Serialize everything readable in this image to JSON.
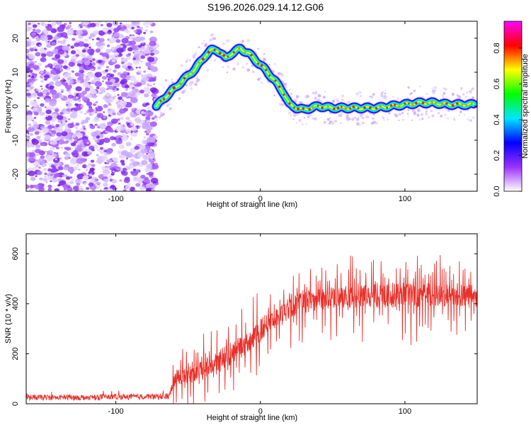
{
  "title": "S196.2026.029.14.12.G06",
  "chart_data": [
    {
      "type": "heatmap",
      "xlabel": "Height of straight line (km)",
      "ylabel": "Frequency (Hz)",
      "xlim": [
        -162,
        150
      ],
      "ylim": [
        -25,
        25
      ],
      "xticks": [
        -100,
        0,
        100
      ],
      "yticks": [
        -20,
        -10,
        0,
        10,
        20
      ],
      "noise_region_x": [
        -162,
        -72
      ],
      "ridge_x": [
        -72,
        -65,
        -55,
        -45,
        -38,
        -34,
        -30,
        -27,
        -24,
        -20,
        -14,
        -8,
        -2,
        4,
        10,
        16,
        20,
        25,
        30,
        40,
        50,
        60,
        70,
        80,
        90,
        100,
        110,
        120,
        130,
        140,
        148
      ],
      "ridge_y": [
        0,
        3,
        7,
        11,
        15,
        16.5,
        16.5,
        15.5,
        14,
        15.5,
        17,
        15.5,
        13,
        10.5,
        7.5,
        4,
        0.5,
        -0.5,
        -1,
        0,
        -0.5,
        -0.5,
        -0.5,
        -0.5,
        0,
        0.5,
        1,
        1,
        0.5,
        0.5,
        0.5
      ],
      "colorbar": {
        "label": "Normalized spectral amplitude",
        "range": [
          0,
          0.95
        ],
        "ticks": [
          "0.0",
          "0.2",
          "0.4",
          "0.6",
          "0.8"
        ],
        "tick_values": [
          0,
          0.2,
          0.4,
          0.6,
          0.8
        ],
        "colors": [
          "#ffffff",
          "#9b30ff",
          "#0000ff",
          "#00e5ff",
          "#00ff00",
          "#ffff00",
          "#ff0000",
          "#ff00ff"
        ]
      }
    },
    {
      "type": "line",
      "xlabel": "Height of straight line (km)",
      "ylabel": "SNR (10 * v/v)",
      "xlim": [
        -162,
        150
      ],
      "ylim": [
        0,
        680
      ],
      "xticks": [
        -100,
        0,
        100
      ],
      "yticks": [
        0,
        200,
        400,
        600
      ],
      "series": [
        {
          "name": "SNR",
          "color": "#e8302a",
          "x": [
            -162,
            -140,
            -120,
            -100,
            -80,
            -63,
            -60,
            -55,
            -50,
            -45,
            -40,
            -35,
            -30,
            -25,
            -20,
            -15,
            -10,
            -5,
            0,
            5,
            10,
            15,
            20,
            25,
            30,
            35,
            40,
            45,
            50,
            60,
            70,
            80,
            90,
            100,
            110,
            120,
            130,
            140,
            150
          ],
          "mean": [
            25,
            25,
            25,
            28,
            28,
            30,
            95,
            110,
            115,
            120,
            135,
            150,
            160,
            180,
            200,
            215,
            240,
            265,
            290,
            315,
            340,
            360,
            380,
            395,
            405,
            410,
            415,
            420,
            425,
            430,
            430,
            430,
            432,
            435,
            435,
            435,
            432,
            430,
            430
          ],
          "amp": [
            25,
            25,
            25,
            25,
            25,
            30,
            70,
            80,
            80,
            90,
            100,
            110,
            110,
            100,
            110,
            100,
            110,
            110,
            110,
            110,
            100,
            100,
            100,
            100,
            110,
            110,
            110,
            110,
            120,
            120,
            120,
            120,
            120,
            130,
            130,
            130,
            120,
            120,
            120
          ]
        }
      ]
    }
  ]
}
